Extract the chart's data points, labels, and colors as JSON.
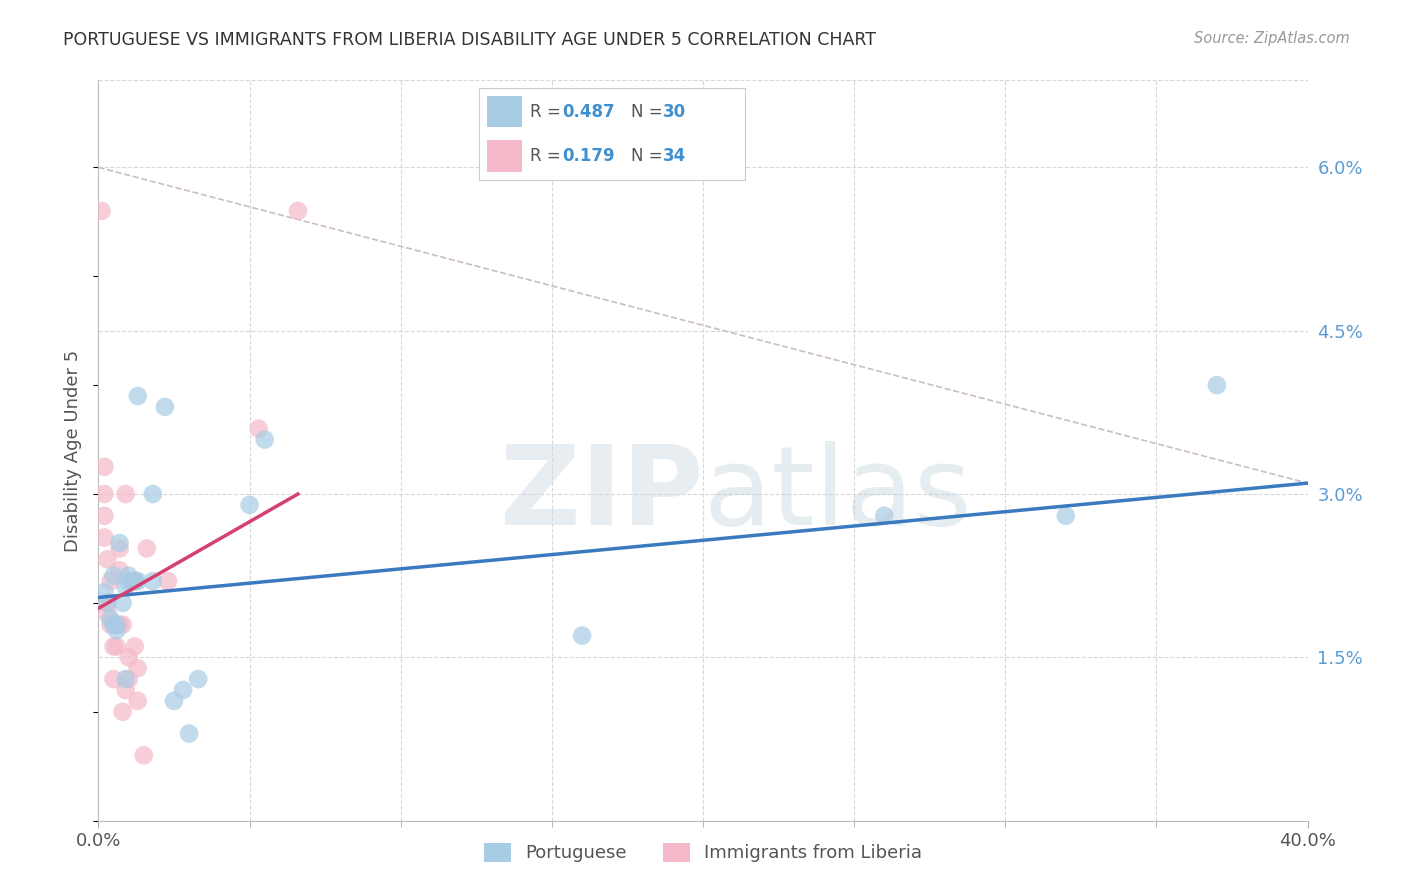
{
  "title": "PORTUGUESE VS IMMIGRANTS FROM LIBERIA DISABILITY AGE UNDER 5 CORRELATION CHART",
  "source": "Source: ZipAtlas.com",
  "ylabel": "Disability Age Under 5",
  "ytick_vals": [
    0.015,
    0.03,
    0.045,
    0.06
  ],
  "ytick_labels": [
    "1.5%",
    "3.0%",
    "4.5%",
    "6.0%"
  ],
  "xlim": [
    0.0,
    0.4
  ],
  "ylim": [
    0.0,
    0.068
  ],
  "legend_blue_r": "0.487",
  "legend_blue_n": "30",
  "legend_pink_r": "0.179",
  "legend_pink_n": "34",
  "blue_color": "#a8cce4",
  "pink_color": "#f4b8c8",
  "blue_line_color": "#3a7abf",
  "pink_line_color": "#d44070",
  "dashed_line_color": "#ccbbcc",
  "background": "#ffffff",
  "grid_color": "#d8d8d8",
  "blue_scatter": [
    [
      0.002,
      0.021
    ],
    [
      0.003,
      0.02
    ],
    [
      0.004,
      0.0185
    ],
    [
      0.005,
      0.0225
    ],
    [
      0.005,
      0.018
    ],
    [
      0.006,
      0.018
    ],
    [
      0.006,
      0.0175
    ],
    [
      0.007,
      0.0255
    ],
    [
      0.008,
      0.02
    ],
    [
      0.009,
      0.0215
    ],
    [
      0.009,
      0.013
    ],
    [
      0.01,
      0.0225
    ],
    [
      0.01,
      0.022
    ],
    [
      0.012,
      0.022
    ],
    [
      0.012,
      0.022
    ],
    [
      0.013,
      0.022
    ],
    [
      0.013,
      0.039
    ],
    [
      0.018,
      0.03
    ],
    [
      0.018,
      0.022
    ],
    [
      0.022,
      0.038
    ],
    [
      0.025,
      0.011
    ],
    [
      0.028,
      0.012
    ],
    [
      0.03,
      0.008
    ],
    [
      0.033,
      0.013
    ],
    [
      0.05,
      0.029
    ],
    [
      0.055,
      0.035
    ],
    [
      0.16,
      0.017
    ],
    [
      0.26,
      0.028
    ],
    [
      0.32,
      0.028
    ],
    [
      0.37,
      0.04
    ]
  ],
  "pink_scatter": [
    [
      0.001,
      0.056
    ],
    [
      0.002,
      0.0325
    ],
    [
      0.002,
      0.03
    ],
    [
      0.002,
      0.028
    ],
    [
      0.002,
      0.026
    ],
    [
      0.003,
      0.024
    ],
    [
      0.003,
      0.02
    ],
    [
      0.003,
      0.019
    ],
    [
      0.004,
      0.022
    ],
    [
      0.004,
      0.018
    ],
    [
      0.005,
      0.018
    ],
    [
      0.005,
      0.016
    ],
    [
      0.005,
      0.013
    ],
    [
      0.006,
      0.018
    ],
    [
      0.006,
      0.016
    ],
    [
      0.007,
      0.025
    ],
    [
      0.007,
      0.023
    ],
    [
      0.007,
      0.018
    ],
    [
      0.008,
      0.018
    ],
    [
      0.008,
      0.01
    ],
    [
      0.009,
      0.03
    ],
    [
      0.009,
      0.012
    ],
    [
      0.01,
      0.015
    ],
    [
      0.01,
      0.013
    ],
    [
      0.011,
      0.022
    ],
    [
      0.012,
      0.022
    ],
    [
      0.012,
      0.016
    ],
    [
      0.013,
      0.014
    ],
    [
      0.013,
      0.011
    ],
    [
      0.015,
      0.006
    ],
    [
      0.016,
      0.025
    ],
    [
      0.023,
      0.022
    ],
    [
      0.053,
      0.036
    ],
    [
      0.066,
      0.056
    ]
  ],
  "blue_line_x": [
    0.0,
    0.4
  ],
  "blue_line_y": [
    0.0205,
    0.031
  ],
  "pink_line_x": [
    0.0,
    0.066
  ],
  "pink_line_y": [
    0.0195,
    0.03
  ],
  "dashed_line_x": [
    0.0,
    0.4
  ],
  "dashed_line_y": [
    0.06,
    0.031
  ],
  "minor_xtick_positions": [
    0.05,
    0.1,
    0.15,
    0.2,
    0.25,
    0.3,
    0.35
  ],
  "bottom_legend_labels": [
    "Portuguese",
    "Immigrants from Liberia"
  ]
}
